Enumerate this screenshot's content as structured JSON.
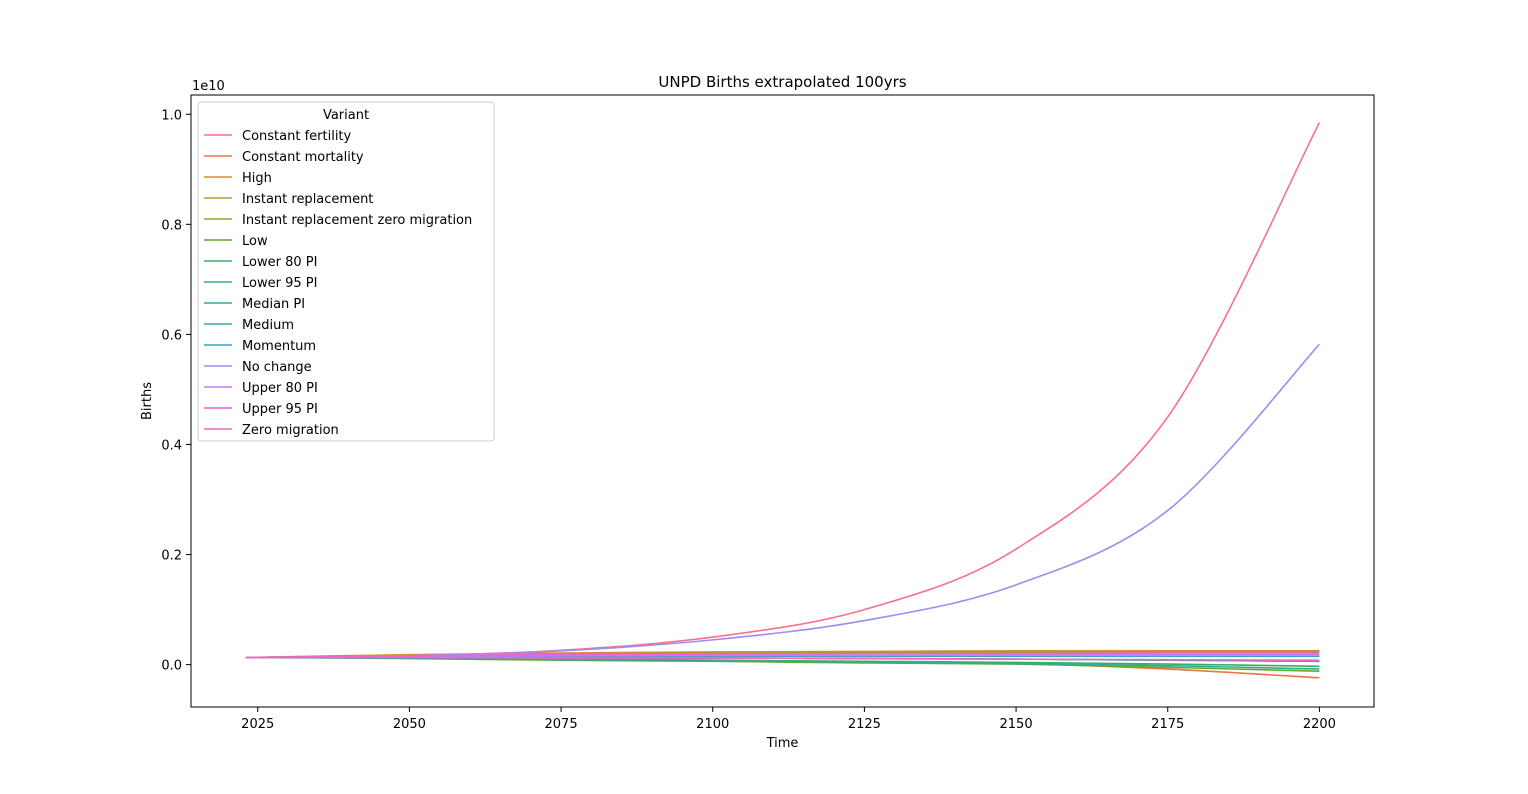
{
  "chart_data": {
    "type": "line",
    "title": "UNPD Births extrapolated 100yrs",
    "xlabel": "Time",
    "ylabel": "Births",
    "y_offset_label": "1e10",
    "y_scale": 10000000000,
    "xlim": [
      2014,
      2209
    ],
    "ylim": [
      -0.077,
      1.035
    ],
    "xticks": [
      2025,
      2050,
      2075,
      2100,
      2125,
      2150,
      2175,
      2200
    ],
    "yticks": [
      0.0,
      0.2,
      0.4,
      0.6,
      0.8,
      1.0
    ],
    "ytick_labels": [
      "0.0",
      "0.2",
      "0.4",
      "0.6",
      "0.8",
      "1.0"
    ],
    "grid": false,
    "legend": {
      "title": "Variant",
      "placement": "top-left"
    },
    "x": [
      2023,
      2050,
      2075,
      2100,
      2125,
      2150,
      2175,
      2200
    ],
    "series": [
      {
        "name": "Constant fertility",
        "color": "#f77189",
        "values": [
          0.013,
          0.016,
          0.026,
          0.05,
          0.1,
          0.21,
          0.45,
          0.985
        ]
      },
      {
        "name": "Constant mortality",
        "color": "#ed7448",
        "values": [
          0.013,
          0.012,
          0.01,
          0.008,
          0.005,
          0.002,
          -0.008,
          -0.024
        ]
      },
      {
        "name": "High",
        "color": "#d58b31",
        "values": [
          0.013,
          0.018,
          0.021,
          0.023,
          0.024,
          0.025,
          0.025,
          0.025
        ]
      },
      {
        "name": "Instant replacement",
        "color": "#b79a31",
        "values": [
          0.013,
          0.016,
          0.019,
          0.021,
          0.022,
          0.023,
          0.023,
          0.023
        ]
      },
      {
        "name": "Instant replacement zero migration",
        "color": "#99a231",
        "values": [
          0.013,
          0.016,
          0.018,
          0.02,
          0.021,
          0.022,
          0.022,
          0.022
        ]
      },
      {
        "name": "Low",
        "color": "#5fab31",
        "values": [
          0.013,
          0.011,
          0.008,
          0.006,
          0.003,
          0.001,
          -0.005,
          -0.012
        ]
      },
      {
        "name": "Lower 80 PI",
        "color": "#33af6c",
        "values": [
          0.013,
          0.012,
          0.01,
          0.008,
          0.006,
          0.004,
          0.001,
          -0.003
        ]
      },
      {
        "name": "Lower 95 PI",
        "color": "#35ac8e",
        "values": [
          0.013,
          0.012,
          0.009,
          0.007,
          0.005,
          0.002,
          -0.002,
          -0.008
        ]
      },
      {
        "name": "Median PI",
        "color": "#37aaa1",
        "values": [
          0.013,
          0.013,
          0.012,
          0.012,
          0.011,
          0.01,
          0.008,
          0.006
        ]
      },
      {
        "name": "Medium",
        "color": "#39a7b0",
        "values": [
          0.013,
          0.013,
          0.012,
          0.012,
          0.011,
          0.01,
          0.008,
          0.006
        ]
      },
      {
        "name": "Momentum",
        "color": "#3ba3c1",
        "values": [
          0.013,
          0.014,
          0.014,
          0.015,
          0.015,
          0.015,
          0.015,
          0.015
        ]
      },
      {
        "name": "No change",
        "color": "#9b8ef0",
        "values": [
          0.013,
          0.016,
          0.025,
          0.045,
          0.08,
          0.145,
          0.28,
          0.582
        ]
      },
      {
        "name": "Upper 80 PI",
        "color": "#cc7af4",
        "values": [
          0.013,
          0.015,
          0.016,
          0.017,
          0.017,
          0.018,
          0.018,
          0.018
        ]
      },
      {
        "name": "Upper 95 PI",
        "color": "#f45fde",
        "values": [
          0.013,
          0.016,
          0.018,
          0.019,
          0.02,
          0.02,
          0.021,
          0.021
        ]
      },
      {
        "name": "Zero migration",
        "color": "#f565b8",
        "values": [
          0.013,
          0.013,
          0.012,
          0.012,
          0.011,
          0.01,
          0.009,
          0.008
        ]
      }
    ]
  }
}
